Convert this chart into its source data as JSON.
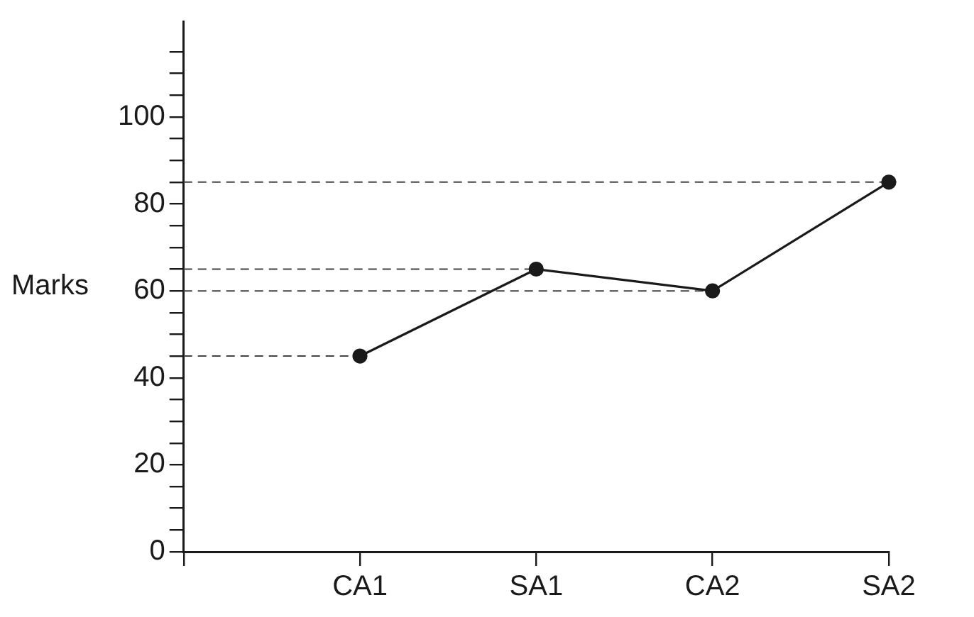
{
  "chart_data": {
    "type": "line",
    "ylabel": "Marks",
    "categories": [
      null,
      "CA1",
      "SA1",
      "CA2",
      "SA2"
    ],
    "series": [
      {
        "color": "#1a1a1a",
        "values": [
          null,
          45,
          65,
          60,
          85
        ]
      }
    ],
    "ylim": [
      0,
      122
    ],
    "yticks": [
      0,
      {
        "value": 5,
        "label": null
      },
      {
        "value": 10,
        "label": null
      },
      {
        "value": 15,
        "label": null
      },
      20,
      {
        "value": 25,
        "label": null
      },
      {
        "value": 30,
        "label": null
      },
      {
        "value": 35,
        "label": null
      },
      40,
      {
        "value": 45,
        "label": null
      },
      {
        "value": 50,
        "label": null
      },
      {
        "value": 55,
        "label": null
      },
      60,
      {
        "value": 65,
        "label": null
      },
      {
        "value": 70,
        "label": null
      },
      {
        "value": 75,
        "label": null
      },
      80,
      {
        "value": 85,
        "label": null
      },
      {
        "value": 90,
        "label": null
      },
      {
        "value": 95,
        "label": null
      },
      100,
      {
        "value": 105,
        "label": null
      },
      {
        "value": 110,
        "label": null
      },
      {
        "value": 115,
        "label": null
      }
    ],
    "ref_lines": [
      {
        "axis": "y",
        "value": 45,
        "color": "#444444",
        "line_style": "dashed"
      },
      {
        "axis": "y",
        "value": 65,
        "color": "#444444",
        "line_style": "dashed"
      },
      {
        "axis": "y",
        "value": 60,
        "color": "#444444",
        "line_style": "dashed"
      },
      {
        "axis": "y",
        "value": 85,
        "color": "#444444",
        "line_style": "dashed"
      }
    ],
    "grid": false,
    "legend": false,
    "marker": "circle",
    "line_style": "solid"
  }
}
